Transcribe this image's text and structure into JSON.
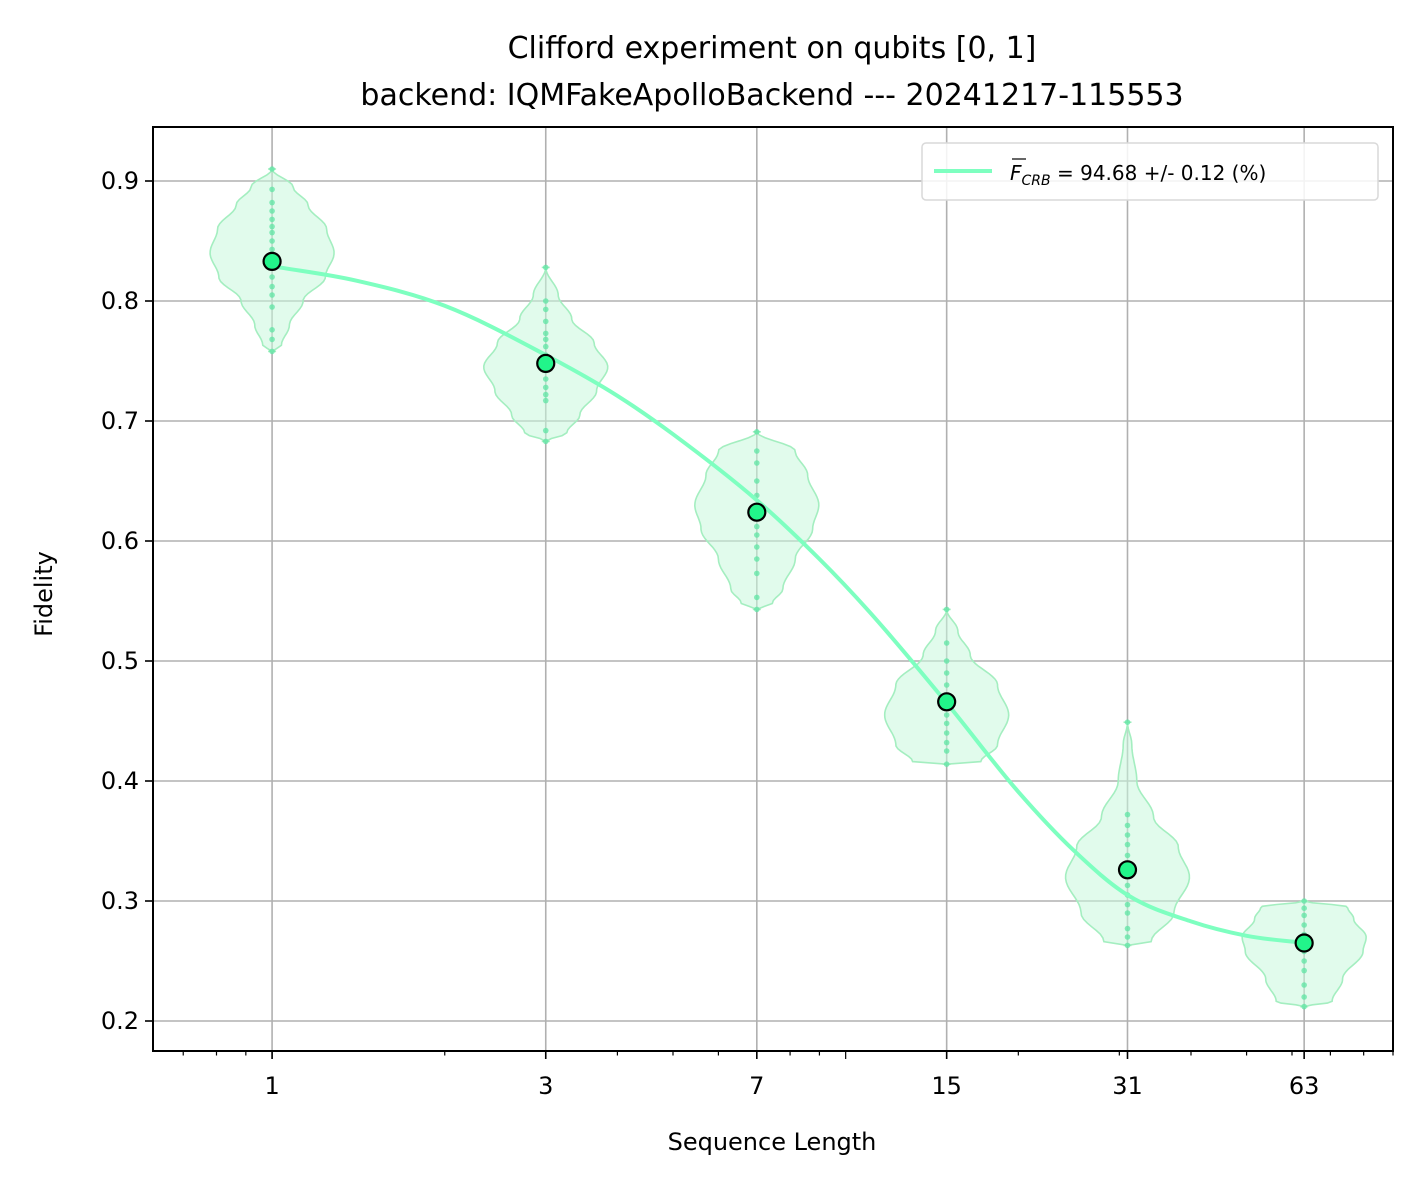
{
  "chart_data": {
    "type": "scatter",
    "title": "Clifford experiment on qubits [0, 1]",
    "subtitle": "backend: IQMFakeApolloBackend --- 20241217-115553",
    "xlabel": "Sequence Length",
    "ylabel": "Fidelity",
    "x_scale": "log",
    "xlim": [
      0.62,
      90
    ],
    "ylim": [
      0.175,
      0.945
    ],
    "x_ticks": [
      1,
      3,
      7,
      15,
      31,
      63
    ],
    "x_tick_labels": [
      "1",
      "3",
      "7",
      "15",
      "31",
      "63"
    ],
    "y_ticks": [
      0.2,
      0.3,
      0.4,
      0.5,
      0.6,
      0.7,
      0.8,
      0.9
    ],
    "y_tick_labels": [
      "0.2",
      "0.3",
      "0.4",
      "0.5",
      "0.6",
      "0.7",
      "0.8",
      "0.9"
    ],
    "grid": true,
    "legend_position": "top-right",
    "legend": {
      "symbol": "F",
      "subscript": "CRB",
      "text": " = 94.68 +/- 0.12 (%)"
    },
    "colors": {
      "series": "#7effc0",
      "marker_fill": "#22f58a",
      "violin_fill": "#c9f7dc",
      "violin_edge": "#a4eec0",
      "grid": "#b0b0b0"
    },
    "mean_points": {
      "x": [
        1,
        3,
        7,
        15,
        31,
        63
      ],
      "y": [
        0.833,
        0.748,
        0.624,
        0.466,
        0.326,
        0.265
      ]
    },
    "fit_curve": {
      "x": [
        1,
        1.4,
        2,
        3,
        4,
        5,
        7,
        9,
        11,
        15,
        20,
        25,
        31,
        40,
        50,
        63
      ],
      "y": [
        0.829,
        0.817,
        0.796,
        0.755,
        0.721,
        0.689,
        0.634,
        0.585,
        0.541,
        0.465,
        0.391,
        0.342,
        0.305,
        0.283,
        0.271,
        0.265
      ]
    },
    "violins": [
      {
        "x": 1,
        "y": [
          0.758,
          0.768,
          0.776,
          0.795,
          0.805,
          0.812,
          0.82,
          0.828,
          0.835,
          0.843,
          0.85,
          0.857,
          0.862,
          0.868,
          0.875,
          0.882,
          0.893,
          0.91
        ],
        "profile": [
          [
            0.758,
            0.0
          ],
          [
            0.763,
            0.15
          ],
          [
            0.78,
            0.28
          ],
          [
            0.8,
            0.5
          ],
          [
            0.82,
            0.86
          ],
          [
            0.84,
            1.0
          ],
          [
            0.86,
            0.88
          ],
          [
            0.88,
            0.58
          ],
          [
            0.895,
            0.34
          ],
          [
            0.91,
            0.0
          ]
        ]
      },
      {
        "x": 3,
        "y": [
          0.683,
          0.692,
          0.717,
          0.722,
          0.728,
          0.735,
          0.742,
          0.748,
          0.755,
          0.762,
          0.768,
          0.773,
          0.783,
          0.793,
          0.8,
          0.828
        ],
        "profile": [
          [
            0.683,
            0.0
          ],
          [
            0.69,
            0.34
          ],
          [
            0.705,
            0.55
          ],
          [
            0.725,
            0.82
          ],
          [
            0.745,
            1.0
          ],
          [
            0.765,
            0.78
          ],
          [
            0.785,
            0.42
          ],
          [
            0.805,
            0.2
          ],
          [
            0.828,
            0.0
          ]
        ]
      },
      {
        "x": 7,
        "y": [
          0.543,
          0.553,
          0.573,
          0.585,
          0.595,
          0.605,
          0.612,
          0.62,
          0.628,
          0.638,
          0.65,
          0.665,
          0.675,
          0.691
        ],
        "profile": [
          [
            0.543,
            0.0
          ],
          [
            0.548,
            0.25
          ],
          [
            0.56,
            0.42
          ],
          [
            0.585,
            0.62
          ],
          [
            0.61,
            0.9
          ],
          [
            0.63,
            1.0
          ],
          [
            0.655,
            0.82
          ],
          [
            0.675,
            0.62
          ],
          [
            0.691,
            0.0
          ]
        ]
      },
      {
        "x": 15,
        "y": [
          0.414,
          0.425,
          0.432,
          0.44,
          0.448,
          0.455,
          0.463,
          0.47,
          0.48,
          0.49,
          0.5,
          0.515,
          0.543
        ],
        "profile": [
          [
            0.414,
            0.0
          ],
          [
            0.416,
            0.55
          ],
          [
            0.43,
            0.82
          ],
          [
            0.455,
            1.0
          ],
          [
            0.48,
            0.82
          ],
          [
            0.505,
            0.38
          ],
          [
            0.525,
            0.18
          ],
          [
            0.543,
            0.0
          ]
        ]
      },
      {
        "x": 31,
        "y": [
          0.263,
          0.27,
          0.277,
          0.29,
          0.297,
          0.305,
          0.313,
          0.322,
          0.33,
          0.338,
          0.347,
          0.355,
          0.363,
          0.372,
          0.449
        ],
        "profile": [
          [
            0.263,
            0.0
          ],
          [
            0.266,
            0.38
          ],
          [
            0.29,
            0.75
          ],
          [
            0.32,
            1.0
          ],
          [
            0.345,
            0.82
          ],
          [
            0.37,
            0.42
          ],
          [
            0.4,
            0.15
          ],
          [
            0.43,
            0.07
          ],
          [
            0.449,
            0.0
          ]
        ]
      },
      {
        "x": 63,
        "y": [
          0.212,
          0.22,
          0.23,
          0.242,
          0.25,
          0.258,
          0.265,
          0.272,
          0.28,
          0.288,
          0.294,
          0.3
        ],
        "profile": [
          [
            0.212,
            0.0
          ],
          [
            0.216,
            0.45
          ],
          [
            0.235,
            0.62
          ],
          [
            0.258,
            0.95
          ],
          [
            0.27,
            1.0
          ],
          [
            0.285,
            0.8
          ],
          [
            0.295,
            0.7
          ],
          [
            0.3,
            0.0
          ]
        ]
      }
    ]
  }
}
